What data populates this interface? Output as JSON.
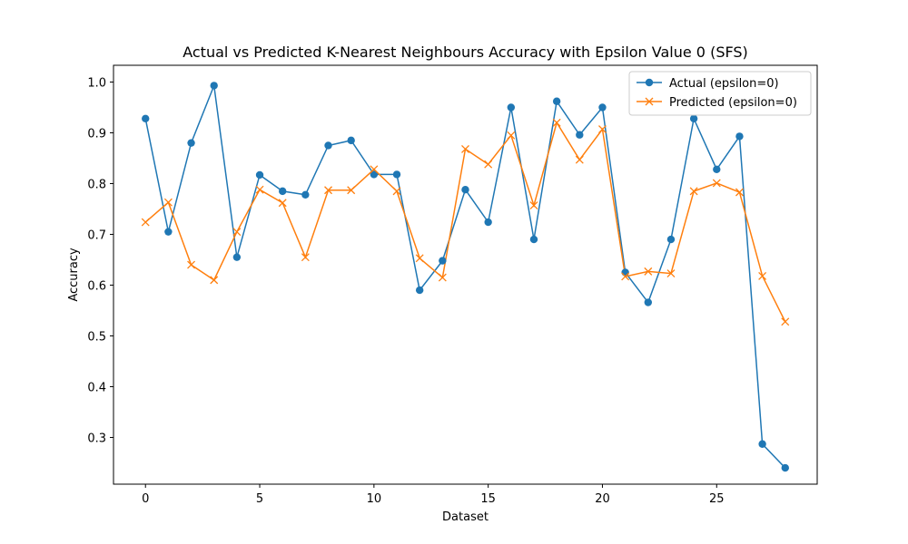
{
  "chart_data": {
    "type": "line",
    "title": "Actual vs Predicted K-Nearest Neighbours Accuracy with Epsilon Value 0 (SFS)",
    "xlabel": "Dataset",
    "ylabel": "Accuracy",
    "x": [
      0,
      1,
      2,
      3,
      4,
      5,
      6,
      7,
      8,
      9,
      10,
      11,
      12,
      13,
      14,
      15,
      16,
      17,
      18,
      19,
      20,
      21,
      22,
      23,
      24,
      25,
      26,
      27,
      28
    ],
    "xlim": [
      -1.4,
      29.4
    ],
    "ylim": [
      0.208,
      1.033
    ],
    "xticks": [
      0,
      5,
      10,
      15,
      20,
      25
    ],
    "yticks": [
      0.3,
      0.4,
      0.5,
      0.6,
      0.7,
      0.8,
      0.9,
      1.0
    ],
    "ytick_labels": [
      "0.3",
      "0.4",
      "0.5",
      "0.6",
      "0.7",
      "0.8",
      "0.9",
      "1.0"
    ],
    "grid": false,
    "legend_position": "top-right",
    "series": [
      {
        "name": "Actual (epsilon=0)",
        "color": "#1f77b4",
        "marker": "circle",
        "values": [
          0.928,
          0.705,
          0.88,
          0.993,
          0.655,
          0.817,
          0.785,
          0.778,
          0.875,
          0.885,
          0.818,
          0.818,
          0.59,
          0.648,
          0.788,
          0.724,
          0.95,
          0.69,
          0.962,
          0.896,
          0.95,
          0.625,
          0.566,
          0.69,
          0.928,
          0.828,
          0.893,
          0.287,
          0.24
        ]
      },
      {
        "name": "Predicted (epsilon=0)",
        "color": "#ff7f0e",
        "marker": "x",
        "values": [
          0.724,
          0.763,
          0.64,
          0.61,
          0.705,
          0.788,
          0.762,
          0.655,
          0.787,
          0.787,
          0.828,
          0.785,
          0.653,
          0.615,
          0.868,
          0.838,
          0.895,
          0.757,
          0.92,
          0.847,
          0.907,
          0.617,
          0.627,
          0.623,
          0.785,
          0.801,
          0.783,
          0.618,
          0.528
        ]
      }
    ]
  }
}
